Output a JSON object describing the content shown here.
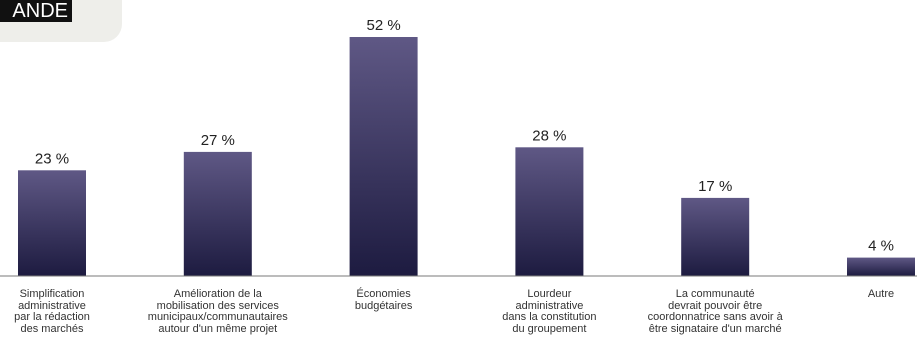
{
  "header": {
    "tag_text": "ANDE"
  },
  "chart_data": {
    "type": "bar",
    "title": "",
    "xlabel": "",
    "ylabel": "",
    "ylim": [
      0,
      52
    ],
    "grid": false,
    "legend": "none",
    "value_suffix": " %",
    "categories": [
      "Simplification\nadministrative\npar la rédaction\ndes marchés",
      "Amélioration de la\nmobilisation des services\nmunicipaux/communautaires\nautour d'un même projet",
      "Économies\nbudgétaires",
      "Lourdeur\nadministrative\ndans la constitution\ndu groupement",
      "La communauté\ndevrait pouvoir être\ncoordonnatrice sans avoir à\nêtre signataire d'un marché",
      "Autre"
    ],
    "values": [
      23,
      27,
      52,
      28,
      17,
      4
    ],
    "bar_color_top": "#5f5885",
    "bar_color_bottom": "#1d1b40"
  }
}
